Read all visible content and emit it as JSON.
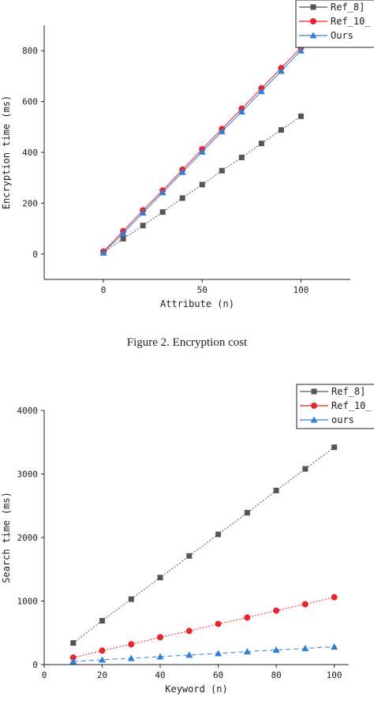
{
  "caption": "Figure 2.    Encryption cost",
  "chart_data": [
    {
      "type": "line",
      "title": "",
      "xlabel": "Attribute (n)",
      "ylabel": "Encryption time (ms)",
      "xlim": [
        -30,
        125
      ],
      "ylim": [
        -100,
        900
      ],
      "xticks": [
        0,
        50,
        100
      ],
      "yticks": [
        0,
        200,
        400,
        600,
        800
      ],
      "x": [
        0,
        10,
        20,
        30,
        40,
        50,
        60,
        70,
        80,
        90,
        100
      ],
      "series": [
        {
          "name": "Ref_8]",
          "color": "#555555",
          "marker": "square",
          "dash": "dotted",
          "values": [
            5,
            60,
            112,
            165,
            220,
            273,
            328,
            380,
            435,
            488,
            542
          ]
        },
        {
          "name": "Ref_10_",
          "color": "#e8262b",
          "marker": "circle",
          "dash": "solid",
          "values": [
            10,
            90,
            172,
            250,
            332,
            412,
            492,
            572,
            652,
            732,
            812
          ]
        },
        {
          "name": "Ours",
          "color": "#2f7fd8",
          "marker": "triangle",
          "dash": "solid",
          "values": [
            5,
            82,
            162,
            242,
            322,
            402,
            482,
            560,
            640,
            720,
            800
          ]
        }
      ],
      "legend": "top-right",
      "grid": false
    },
    {
      "type": "line",
      "title": "",
      "xlabel": "Keyword (n)",
      "ylabel": "Search time (ms)",
      "xlim": [
        0,
        105
      ],
      "ylim": [
        0,
        4000
      ],
      "xticks": [
        0,
        20,
        40,
        60,
        80,
        100
      ],
      "yticks": [
        0,
        1000,
        2000,
        3000,
        4000
      ],
      "x": [
        10,
        20,
        30,
        40,
        50,
        60,
        70,
        80,
        90,
        100
      ],
      "series": [
        {
          "name": "Ref_8]",
          "color": "#555555",
          "marker": "square",
          "dash": "dotted",
          "values": [
            340,
            690,
            1030,
            1370,
            1710,
            2050,
            2390,
            2740,
            3080,
            3420
          ]
        },
        {
          "name": "Ref_10_",
          "color": "#e8262b",
          "marker": "circle",
          "dash": "dotted",
          "values": [
            110,
            220,
            320,
            430,
            530,
            640,
            740,
            850,
            950,
            1060
          ]
        },
        {
          "name": "ours",
          "color": "#2f7fd8",
          "marker": "triangle",
          "dash": "dashed",
          "values": [
            50,
            75,
            100,
            125,
            150,
            175,
            205,
            230,
            255,
            280
          ]
        }
      ],
      "legend": "top-right",
      "grid": false
    }
  ]
}
